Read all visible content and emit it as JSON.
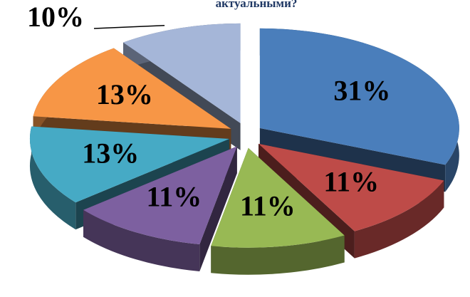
{
  "chart_data": {
    "type": "pie",
    "title": "актуальными?",
    "categories": [
      null,
      null,
      null,
      null,
      null,
      null,
      null
    ],
    "values": [
      31,
      11,
      11,
      11,
      13,
      13,
      10
    ],
    "value_labels": [
      "31%",
      "11%",
      "11%",
      "11%",
      "13%",
      "13%",
      "10%"
    ],
    "colors": [
      "#4a7ebb",
      "#be4b48",
      "#98b954",
      "#7d60a0",
      "#46aac5",
      "#f79646",
      "#a5b6d8"
    ]
  }
}
